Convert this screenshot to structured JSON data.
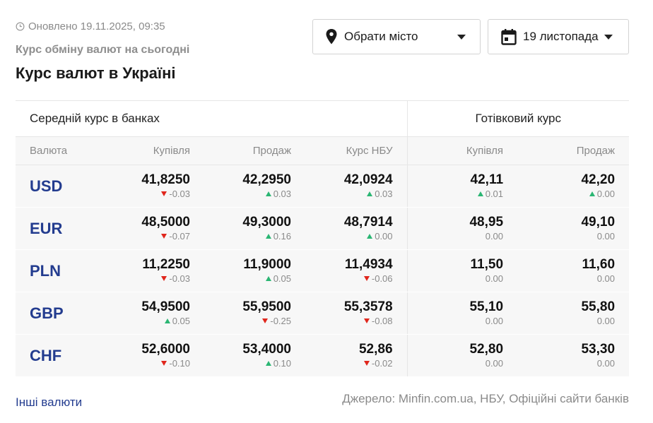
{
  "header": {
    "updated": "Оновлено 19.11.2025, 09:35",
    "subtitle": "Курс обміну валют на сьогодні",
    "title": "Курс валют в Україні"
  },
  "controls": {
    "city_label": "Обрати місто",
    "date_label": "19 листопада"
  },
  "table": {
    "group_banks": "Середній курс в банках",
    "group_cash": "Готівковий курс",
    "columns": [
      "Валюта",
      "Купівля",
      "Продаж",
      "Курс НБУ",
      "Купівля",
      "Продаж"
    ],
    "rows": [
      {
        "currency": "USD",
        "cells": [
          {
            "value": "41,8250",
            "change": "-0.03",
            "dir": "down"
          },
          {
            "value": "42,2950",
            "change": "0.03",
            "dir": "up"
          },
          {
            "value": "42,0924",
            "change": "0.03",
            "dir": "up"
          },
          {
            "value": "42,11",
            "change": "0.01",
            "dir": "up"
          },
          {
            "value": "42,20",
            "change": "0.00",
            "dir": "up"
          }
        ]
      },
      {
        "currency": "EUR",
        "cells": [
          {
            "value": "48,5000",
            "change": "-0.07",
            "dir": "down"
          },
          {
            "value": "49,3000",
            "change": "0.16",
            "dir": "up"
          },
          {
            "value": "48,7914",
            "change": "0.00",
            "dir": "up"
          },
          {
            "value": "48,95",
            "change": "0.00",
            "dir": "none"
          },
          {
            "value": "49,10",
            "change": "0.00",
            "dir": "none"
          }
        ]
      },
      {
        "currency": "PLN",
        "cells": [
          {
            "value": "11,2250",
            "change": "-0.03",
            "dir": "down"
          },
          {
            "value": "11,9000",
            "change": "0.05",
            "dir": "up"
          },
          {
            "value": "11,4934",
            "change": "-0.06",
            "dir": "down"
          },
          {
            "value": "11,50",
            "change": "0.00",
            "dir": "none"
          },
          {
            "value": "11,60",
            "change": "0.00",
            "dir": "none"
          }
        ]
      },
      {
        "currency": "GBP",
        "cells": [
          {
            "value": "54,9500",
            "change": "0.05",
            "dir": "up"
          },
          {
            "value": "55,9500",
            "change": "-0.25",
            "dir": "down"
          },
          {
            "value": "55,3578",
            "change": "-0.08",
            "dir": "down"
          },
          {
            "value": "55,10",
            "change": "0.00",
            "dir": "none"
          },
          {
            "value": "55,80",
            "change": "0.00",
            "dir": "none"
          }
        ]
      },
      {
        "currency": "CHF",
        "cells": [
          {
            "value": "52,6000",
            "change": "-0.10",
            "dir": "down"
          },
          {
            "value": "53,4000",
            "change": "0.10",
            "dir": "up"
          },
          {
            "value": "52,86",
            "change": "-0.02",
            "dir": "down"
          },
          {
            "value": "52,80",
            "change": "0.00",
            "dir": "none"
          },
          {
            "value": "53,30",
            "change": "0.00",
            "dir": "none"
          }
        ]
      }
    ]
  },
  "footer": {
    "other_currencies": "Інші валюти",
    "source": "Джерело: Minfin.com.ua, НБУ, Офіційні сайти банків"
  },
  "colors": {
    "accent": "#233c8f",
    "up": "#2bb673",
    "down": "#e0261c"
  },
  "icons": {
    "updated": "clock-icon",
    "city": "map-pin-icon",
    "date": "calendar-icon",
    "dropdown": "caret-down-icon"
  }
}
